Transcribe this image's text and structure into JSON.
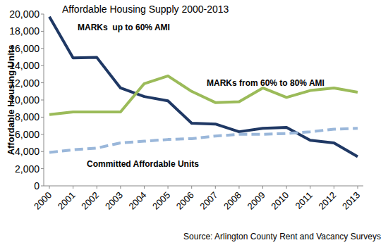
{
  "chart_data": {
    "type": "line",
    "title": "Affordable Housing Supply 2000-2013",
    "y_label": "Affordable Housing Units",
    "annotations": [
      "Source: Arlington County Rent and Vacancy Surveys"
    ],
    "categories": [
      "2000",
      "2001",
      "2002",
      "2003",
      "2004",
      "2005",
      "2006",
      "2007",
      "2008",
      "2009",
      "2010",
      "2011",
      "2012",
      "2013"
    ],
    "series": [
      {
        "name": "MARKs  up to 60% AMI",
        "color": "#1f3864",
        "line_style": "solid",
        "values": [
          19700,
          14900,
          14950,
          11400,
          10400,
          9900,
          7300,
          7200,
          6300,
          6700,
          6800,
          5300,
          5000,
          3400
        ]
      },
      {
        "name": "MARKs from 60% to 80% AMI",
        "color": "#9bbb59",
        "line_style": "solid",
        "values": [
          8300,
          8600,
          8600,
          8600,
          11900,
          12800,
          11000,
          9700,
          9800,
          11400,
          10300,
          11100,
          11400,
          10900
        ]
      },
      {
        "name": "Committed Affordable Units",
        "color": "#9ab7da",
        "line_style": "dashed",
        "values": [
          3900,
          4200,
          4400,
          5000,
          5200,
          5400,
          5500,
          5800,
          6000,
          6000,
          6100,
          6300,
          6600,
          6700
        ]
      }
    ],
    "ylim": [
      0,
      20000
    ],
    "yticks": [
      0,
      {
        "value": 2000,
        "label": "2,000"
      },
      {
        "value": 4000,
        "label": "4,000"
      },
      {
        "value": 6000,
        "label": "6,000"
      },
      {
        "value": 8000,
        "label": "8,000"
      },
      {
        "value": 10000,
        "label": "10,000"
      },
      {
        "value": 12000,
        "label": "12,000"
      },
      {
        "value": 14000,
        "label": "14,000"
      },
      {
        "value": 16000,
        "label": "16,000"
      },
      {
        "value": 18000,
        "label": "18,000"
      },
      {
        "value": 20000,
        "label": "20,000"
      }
    ],
    "grid": false
  }
}
